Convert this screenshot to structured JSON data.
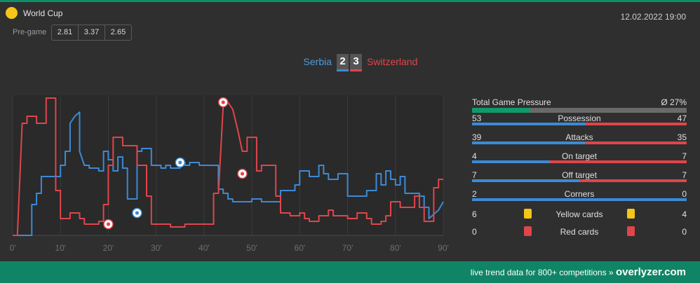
{
  "header": {
    "league": "World Cup",
    "datetime": "12.02.2022 19:00",
    "pregame_label": "Pre-game",
    "odds": [
      "2.81",
      "3.37",
      "2.65"
    ]
  },
  "match": {
    "home_team": "Serbia",
    "away_team": "Switzerland",
    "home_score": "2",
    "away_score": "3"
  },
  "colors": {
    "home": "#3c8ad6",
    "away": "#e0454a",
    "accent": "#0f8565",
    "league_icon": "#f5c518"
  },
  "chart_data": {
    "type": "line",
    "title": "",
    "xlabel": "",
    "ylabel": "",
    "xlim": [
      0,
      90
    ],
    "ylim": [
      0,
      100
    ],
    "x_ticks": [
      "0'",
      "10'",
      "20'",
      "30'",
      "40'",
      "50'",
      "60'",
      "70'",
      "80'",
      "90'"
    ],
    "grid": true,
    "series": [
      {
        "name": "Serbia",
        "points": [
          [
            0,
            0
          ],
          [
            4,
            0
          ],
          [
            4,
            22
          ],
          [
            5,
            22
          ],
          [
            5,
            30
          ],
          [
            6,
            30
          ],
          [
            6,
            42
          ],
          [
            10,
            42
          ],
          [
            10,
            50
          ],
          [
            11,
            50
          ],
          [
            11,
            60
          ],
          [
            12,
            60
          ],
          [
            12,
            80
          ],
          [
            13,
            85
          ],
          [
            14,
            88
          ],
          [
            14,
            60
          ],
          [
            15,
            50
          ],
          [
            16,
            50
          ],
          [
            16,
            48
          ],
          [
            18,
            48
          ],
          [
            18,
            46
          ],
          [
            19,
            46
          ],
          [
            19,
            60
          ],
          [
            20,
            60
          ],
          [
            20,
            54
          ],
          [
            21,
            54
          ],
          [
            21,
            46
          ],
          [
            22,
            46
          ],
          [
            22,
            56
          ],
          [
            23,
            56
          ],
          [
            23,
            48
          ],
          [
            24,
            48
          ],
          [
            24,
            26
          ],
          [
            26,
            26
          ],
          [
            26,
            60
          ],
          [
            27,
            60
          ],
          [
            27,
            62
          ],
          [
            29,
            62
          ],
          [
            29,
            50
          ],
          [
            31,
            50
          ],
          [
            31,
            48
          ],
          [
            32,
            48
          ],
          [
            32,
            50
          ],
          [
            33,
            50
          ],
          [
            33,
            48
          ],
          [
            35,
            48
          ],
          [
            35,
            52
          ],
          [
            36,
            52
          ],
          [
            36,
            50
          ],
          [
            37,
            50
          ],
          [
            37,
            52
          ],
          [
            39,
            52
          ],
          [
            39,
            50
          ],
          [
            43,
            50
          ],
          [
            43,
            33
          ],
          [
            44,
            33
          ],
          [
            44,
            30
          ],
          [
            45,
            30
          ],
          [
            45,
            26
          ],
          [
            46,
            26
          ],
          [
            46,
            24
          ],
          [
            50,
            24
          ],
          [
            50,
            26
          ],
          [
            52,
            26
          ],
          [
            52,
            24
          ],
          [
            56,
            24
          ],
          [
            56,
            32
          ],
          [
            59,
            32
          ],
          [
            59,
            36
          ],
          [
            60,
            36
          ],
          [
            60,
            46
          ],
          [
            62,
            46
          ],
          [
            62,
            42
          ],
          [
            64,
            42
          ],
          [
            64,
            50
          ],
          [
            65,
            50
          ],
          [
            65,
            44
          ],
          [
            66,
            44
          ],
          [
            66,
            40
          ],
          [
            68,
            40
          ],
          [
            68,
            44
          ],
          [
            70,
            44
          ],
          [
            70,
            28
          ],
          [
            74,
            28
          ],
          [
            74,
            32
          ],
          [
            76,
            32
          ],
          [
            76,
            44
          ],
          [
            77,
            44
          ],
          [
            77,
            36
          ],
          [
            78,
            36
          ],
          [
            78,
            46
          ],
          [
            79,
            46
          ],
          [
            79,
            40
          ],
          [
            80,
            40
          ],
          [
            80,
            36
          ],
          [
            81,
            36
          ],
          [
            81,
            42
          ],
          [
            82,
            42
          ],
          [
            82,
            30
          ],
          [
            85,
            30
          ],
          [
            85,
            28
          ],
          [
            86,
            28
          ],
          [
            86,
            20
          ],
          [
            87,
            20
          ],
          [
            87,
            12
          ],
          [
            89,
            18
          ],
          [
            90,
            24
          ]
        ]
      },
      {
        "name": "Switzerland",
        "points": [
          [
            0,
            0
          ],
          [
            1,
            0
          ],
          [
            2,
            80
          ],
          [
            3,
            80
          ],
          [
            3,
            85
          ],
          [
            5,
            85
          ],
          [
            5,
            80
          ],
          [
            7,
            80
          ],
          [
            7,
            98
          ],
          [
            9,
            98
          ],
          [
            9,
            32
          ],
          [
            10,
            32
          ],
          [
            10,
            12
          ],
          [
            12,
            12
          ],
          [
            12,
            16
          ],
          [
            14,
            16
          ],
          [
            14,
            12
          ],
          [
            15,
            12
          ],
          [
            15,
            8
          ],
          [
            18,
            8
          ],
          [
            18,
            10
          ],
          [
            19,
            10
          ],
          [
            19,
            22
          ],
          [
            20,
            22
          ],
          [
            20,
            50
          ],
          [
            21,
            50
          ],
          [
            21,
            70
          ],
          [
            23,
            70
          ],
          [
            23,
            64
          ],
          [
            26,
            64
          ],
          [
            26,
            50
          ],
          [
            28,
            50
          ],
          [
            28,
            28
          ],
          [
            29,
            28
          ],
          [
            29,
            8
          ],
          [
            33,
            8
          ],
          [
            33,
            6
          ],
          [
            36,
            6
          ],
          [
            36,
            8
          ],
          [
            42,
            8
          ],
          [
            42,
            30
          ],
          [
            43,
            30
          ],
          [
            44,
            92
          ],
          [
            45,
            95
          ],
          [
            46,
            90
          ],
          [
            47,
            76
          ],
          [
            48,
            60
          ],
          [
            49,
            60
          ],
          [
            49,
            70
          ],
          [
            51,
            70
          ],
          [
            51,
            46
          ],
          [
            52,
            46
          ],
          [
            52,
            50
          ],
          [
            55,
            50
          ],
          [
            55,
            28
          ],
          [
            56,
            28
          ],
          [
            56,
            16
          ],
          [
            58,
            16
          ],
          [
            58,
            14
          ],
          [
            60,
            14
          ],
          [
            60,
            16
          ],
          [
            61,
            16
          ],
          [
            61,
            12
          ],
          [
            62,
            12
          ],
          [
            62,
            10
          ],
          [
            64,
            10
          ],
          [
            64,
            14
          ],
          [
            66,
            14
          ],
          [
            66,
            18
          ],
          [
            67,
            18
          ],
          [
            67,
            14
          ],
          [
            70,
            14
          ],
          [
            70,
            12
          ],
          [
            72,
            12
          ],
          [
            72,
            16
          ],
          [
            74,
            16
          ],
          [
            74,
            12
          ],
          [
            75,
            12
          ],
          [
            75,
            8
          ],
          [
            77,
            8
          ],
          [
            77,
            10
          ],
          [
            78,
            10
          ],
          [
            78,
            14
          ],
          [
            79,
            14
          ],
          [
            79,
            24
          ],
          [
            81,
            24
          ],
          [
            81,
            20
          ],
          [
            84,
            20
          ],
          [
            84,
            28
          ],
          [
            85,
            28
          ],
          [
            85,
            20
          ],
          [
            86,
            20
          ],
          [
            86,
            10
          ],
          [
            88,
            10
          ],
          [
            88,
            34
          ],
          [
            89,
            34
          ],
          [
            89,
            40
          ],
          [
            90,
            40
          ]
        ]
      }
    ],
    "goals": [
      {
        "team": "Switzerland",
        "minute": 20,
        "value": 8
      },
      {
        "team": "Serbia",
        "minute": 26,
        "value": 16
      },
      {
        "team": "Serbia",
        "minute": 35,
        "value": 52
      },
      {
        "team": "Switzerland",
        "minute": 44,
        "value": 95
      },
      {
        "team": "Switzerland",
        "minute": 48,
        "value": 44
      }
    ]
  },
  "stats": {
    "pressure_label": "Total Game Pressure",
    "pressure_value": "Ø 27%",
    "pressure_pct": 27,
    "rows": [
      {
        "label": "Possession",
        "home": "53",
        "away": "47"
      },
      {
        "label": "Attacks",
        "home": "39",
        "away": "35"
      },
      {
        "label": "On target",
        "home": "4",
        "away": "7"
      },
      {
        "label": "Off target",
        "home": "7",
        "away": "7"
      },
      {
        "label": "Corners",
        "home": "2",
        "away": "0"
      }
    ],
    "cards": [
      {
        "label": "Yellow cards",
        "home": "6",
        "away": "4",
        "color": "#f5c518"
      },
      {
        "label": "Red cards",
        "home": "0",
        "away": "0",
        "color": "#e0454a"
      }
    ]
  },
  "footer": {
    "text": "live trend data for 800+ competitions »",
    "brand": "overlyzer.com"
  }
}
